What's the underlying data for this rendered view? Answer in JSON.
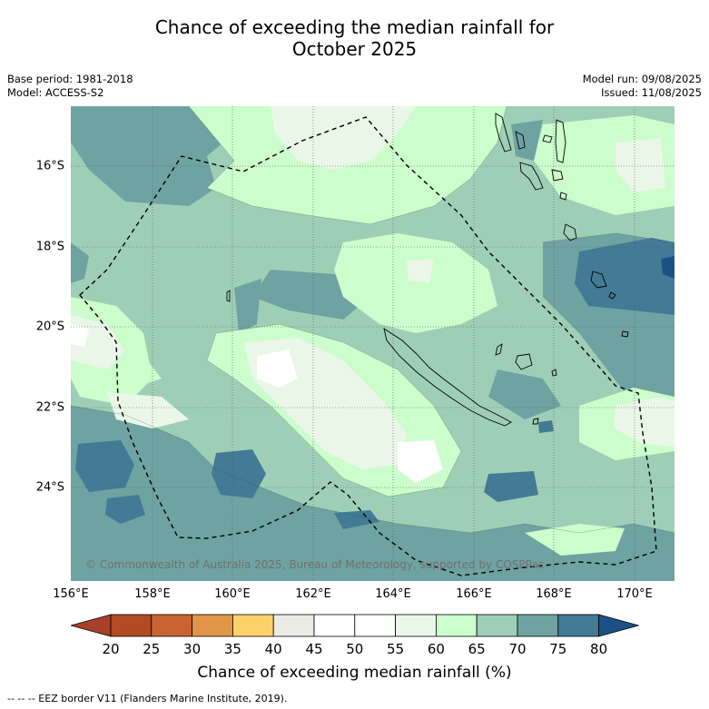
{
  "title_line1": "Chance of exceeding the median rainfall for",
  "title_line2": "October 2025",
  "meta_left": [
    "Base period: 1981-2018",
    "Model: ACCESS-S2"
  ],
  "meta_right": [
    "Model run: 09/08/2025",
    "Issued: 11/08/2025"
  ],
  "lat_labels": [
    "16°S",
    "18°S",
    "20°S",
    "22°S",
    "24°S"
  ],
  "lon_labels": [
    "156°E",
    "158°E",
    "160°E",
    "162°E",
    "164°E",
    "166°E",
    "168°E",
    "170°E"
  ],
  "copyright": "© Commonwealth of Australia 2025, Bureau of Meteorology, supported by COSPPac",
  "colorbar": {
    "ticks": [
      "20",
      "25",
      "30",
      "35",
      "40",
      "45",
      "50",
      "55",
      "60",
      "65",
      "70",
      "75",
      "80"
    ],
    "colors": [
      "#a8402a",
      "#b24a23",
      "#c96432",
      "#e19548",
      "#fdd26a",
      "#ebebe6",
      "#ffffff",
      "#ffffff",
      "#eaf6e8",
      "#ccfdcc",
      "#9ecfb6",
      "#6ea3a2",
      "#437a96",
      "#1b5286"
    ],
    "title": "Chance of exceeding median rainfall (%)"
  },
  "footnote": "--  --  -- EEZ border V11 (Flanders Marine Institute, 2019)."
}
